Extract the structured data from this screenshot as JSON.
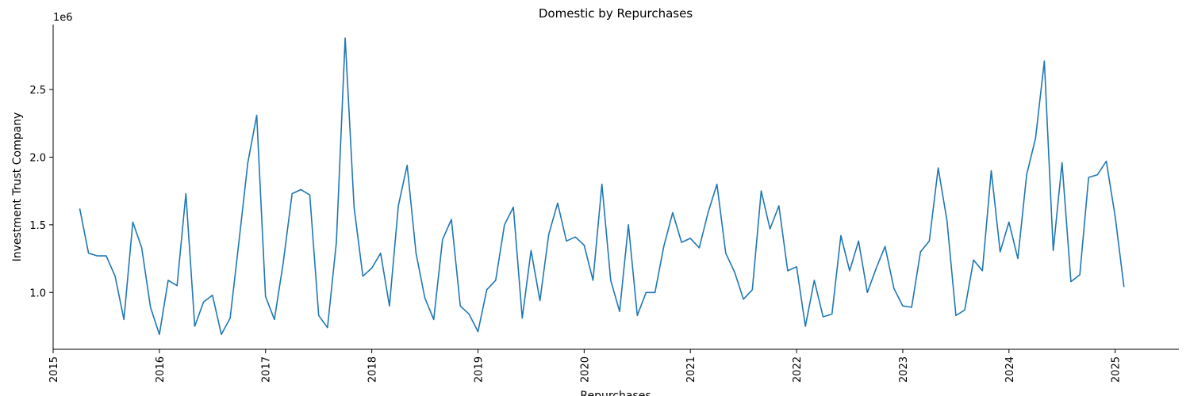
{
  "chart_data": {
    "type": "line",
    "title": "Domestic by Repurchases",
    "xlabel": "Repurchases",
    "ylabel": "Investment Trust Company",
    "y_multiplier_label": "1e6",
    "x_tick_labels": [
      "2015",
      "2016",
      "2017",
      "2018",
      "2019",
      "2020",
      "2021",
      "2022",
      "2023",
      "2024",
      "2025"
    ],
    "y_ticks": [
      1.0,
      1.5,
      2.0,
      2.5
    ],
    "y_tick_labels": [
      "1.0",
      "1.5",
      "2.0",
      "2.5"
    ],
    "xlim": [
      2015.0,
      2025.6
    ],
    "ylim": [
      0.58,
      2.98
    ],
    "grid": false,
    "line_color": "#1f77b4",
    "series": [
      {
        "name": "",
        "x": [
          "2015-04",
          "2015-05",
          "2015-06",
          "2015-07",
          "2015-08",
          "2015-09",
          "2015-10",
          "2015-11",
          "2015-12",
          "2016-01",
          "2016-02",
          "2016-03",
          "2016-04",
          "2016-05",
          "2016-06",
          "2016-07",
          "2016-08",
          "2016-09",
          "2016-10",
          "2016-11",
          "2016-12",
          "2017-01",
          "2017-02",
          "2017-03",
          "2017-04",
          "2017-05",
          "2017-06",
          "2017-07",
          "2017-08",
          "2017-09",
          "2017-10",
          "2017-11",
          "2017-12",
          "2018-01",
          "2018-02",
          "2018-03",
          "2018-04",
          "2018-05",
          "2018-06",
          "2018-07",
          "2018-08",
          "2018-09",
          "2018-10",
          "2018-11",
          "2018-12",
          "2019-01",
          "2019-02",
          "2019-03",
          "2019-04",
          "2019-05",
          "2019-06",
          "2019-07",
          "2019-08",
          "2019-09",
          "2019-10",
          "2019-11",
          "2019-12",
          "2020-01",
          "2020-02",
          "2020-03",
          "2020-04",
          "2020-05",
          "2020-06",
          "2020-07",
          "2020-08",
          "2020-09",
          "2020-10",
          "2020-11",
          "2020-12",
          "2021-01",
          "2021-02",
          "2021-03",
          "2021-04",
          "2021-05",
          "2021-06",
          "2021-07",
          "2021-08",
          "2021-09",
          "2021-10",
          "2021-11",
          "2021-12",
          "2022-01",
          "2022-02",
          "2022-03",
          "2022-04",
          "2022-05",
          "2022-06",
          "2022-07",
          "2022-08",
          "2022-09",
          "2022-10",
          "2022-11",
          "2022-12",
          "2023-01",
          "2023-02",
          "2023-03",
          "2023-04",
          "2023-05",
          "2023-06",
          "2023-07",
          "2023-08",
          "2023-09",
          "2023-10",
          "2023-11",
          "2023-12",
          "2024-01",
          "2024-02",
          "2024-03",
          "2024-04",
          "2024-05",
          "2024-06",
          "2024-07",
          "2024-08",
          "2024-09",
          "2024-10",
          "2024-11",
          "2024-12",
          "2025-01",
          "2025-02"
        ],
        "values": [
          1.62,
          1.29,
          1.27,
          1.27,
          1.12,
          0.8,
          1.52,
          1.33,
          0.89,
          0.69,
          1.09,
          1.05,
          1.73,
          0.75,
          0.93,
          0.98,
          0.69,
          0.81,
          1.38,
          1.96,
          2.31,
          0.97,
          0.8,
          1.22,
          1.73,
          1.76,
          1.72,
          0.83,
          0.74,
          1.37,
          2.88,
          1.63,
          1.12,
          1.18,
          1.29,
          0.9,
          1.64,
          1.94,
          1.29,
          0.96,
          0.8,
          1.39,
          1.54,
          0.9,
          0.84,
          0.71,
          1.02,
          1.09,
          1.5,
          1.63,
          0.81,
          1.31,
          0.94,
          1.43,
          1.66,
          1.38,
          1.41,
          1.35,
          1.09,
          1.8,
          1.09,
          0.86,
          1.5,
          0.83,
          1.0,
          1.0,
          1.34,
          1.59,
          1.37,
          1.4,
          1.33,
          1.59,
          1.8,
          1.29,
          1.15,
          0.95,
          1.02,
          1.75,
          1.47,
          1.64,
          1.16,
          1.19,
          0.75,
          1.09,
          0.82,
          0.84,
          1.42,
          1.16,
          1.38,
          1.0,
          1.18,
          1.34,
          1.03,
          0.9,
          0.89,
          1.3,
          1.38,
          1.92,
          1.53,
          0.83,
          0.87,
          1.24,
          1.16,
          1.9,
          1.3,
          1.52,
          1.25,
          1.87,
          2.14,
          2.71,
          1.31,
          1.96,
          1.08,
          1.13,
          1.85,
          1.87,
          1.97,
          1.56,
          1.04
        ]
      }
    ]
  }
}
